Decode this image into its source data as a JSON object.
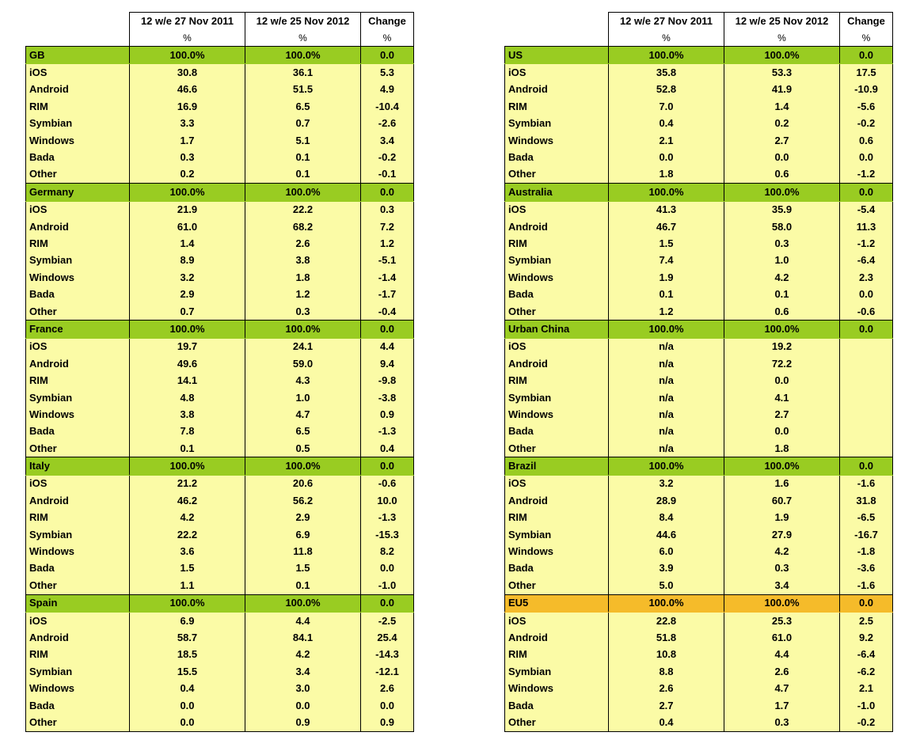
{
  "chart_data": {
    "type": "table",
    "columns": [
      "",
      "12 w/e 27 Nov 2011",
      "12 w/e 25 Nov 2012",
      "Change"
    ],
    "units": [
      "",
      "%",
      "%",
      "%"
    ],
    "left_panel": [
      {
        "region": "GB",
        "total": [
          "100.0%",
          "100.0%",
          "0.0"
        ],
        "rows": [
          [
            "iOS",
            "30.8",
            "36.1",
            "5.3"
          ],
          [
            "Android",
            "46.6",
            "51.5",
            "4.9"
          ],
          [
            "RIM",
            "16.9",
            "6.5",
            "-10.4"
          ],
          [
            "Symbian",
            "3.3",
            "0.7",
            "-2.6"
          ],
          [
            "Windows",
            "1.7",
            "5.1",
            "3.4"
          ],
          [
            "Bada",
            "0.3",
            "0.1",
            "-0.2"
          ],
          [
            "Other",
            "0.2",
            "0.1",
            "-0.1"
          ]
        ]
      },
      {
        "region": "Germany",
        "total": [
          "100.0%",
          "100.0%",
          "0.0"
        ],
        "rows": [
          [
            "iOS",
            "21.9",
            "22.2",
            "0.3"
          ],
          [
            "Android",
            "61.0",
            "68.2",
            "7.2"
          ],
          [
            "RIM",
            "1.4",
            "2.6",
            "1.2"
          ],
          [
            "Symbian",
            "8.9",
            "3.8",
            "-5.1"
          ],
          [
            "Windows",
            "3.2",
            "1.8",
            "-1.4"
          ],
          [
            "Bada",
            "2.9",
            "1.2",
            "-1.7"
          ],
          [
            "Other",
            "0.7",
            "0.3",
            "-0.4"
          ]
        ]
      },
      {
        "region": "France",
        "total": [
          "100.0%",
          "100.0%",
          "0.0"
        ],
        "rows": [
          [
            "iOS",
            "19.7",
            "24.1",
            "4.4"
          ],
          [
            "Android",
            "49.6",
            "59.0",
            "9.4"
          ],
          [
            "RIM",
            "14.1",
            "4.3",
            "-9.8"
          ],
          [
            "Symbian",
            "4.8",
            "1.0",
            "-3.8"
          ],
          [
            "Windows",
            "3.8",
            "4.7",
            "0.9"
          ],
          [
            "Bada",
            "7.8",
            "6.5",
            "-1.3"
          ],
          [
            "Other",
            "0.1",
            "0.5",
            "0.4"
          ]
        ]
      },
      {
        "region": "Italy",
        "total": [
          "100.0%",
          "100.0%",
          "0.0"
        ],
        "rows": [
          [
            "iOS",
            "21.2",
            "20.6",
            "-0.6"
          ],
          [
            "Android",
            "46.2",
            "56.2",
            "10.0"
          ],
          [
            "RIM",
            "4.2",
            "2.9",
            "-1.3"
          ],
          [
            "Symbian",
            "22.2",
            "6.9",
            "-15.3"
          ],
          [
            "Windows",
            "3.6",
            "11.8",
            "8.2"
          ],
          [
            "Bada",
            "1.5",
            "1.5",
            "0.0"
          ],
          [
            "Other",
            "1.1",
            "0.1",
            "-1.0"
          ]
        ]
      },
      {
        "region": "Spain",
        "total": [
          "100.0%",
          "100.0%",
          "0.0"
        ],
        "rows": [
          [
            "iOS",
            "6.9",
            "4.4",
            "-2.5"
          ],
          [
            "Android",
            "58.7",
            "84.1",
            "25.4"
          ],
          [
            "RIM",
            "18.5",
            "4.2",
            "-14.3"
          ],
          [
            "Symbian",
            "15.5",
            "3.4",
            "-12.1"
          ],
          [
            "Windows",
            "0.4",
            "3.0",
            "2.6"
          ],
          [
            "Bada",
            "0.0",
            "0.0",
            "0.0"
          ],
          [
            "Other",
            "0.0",
            "0.9",
            "0.9"
          ]
        ]
      }
    ],
    "right_panel": [
      {
        "region": "US",
        "total": [
          "100.0%",
          "100.0%",
          "0.0"
        ],
        "rows": [
          [
            "iOS",
            "35.8",
            "53.3",
            "17.5"
          ],
          [
            "Android",
            "52.8",
            "41.9",
            "-10.9"
          ],
          [
            "RIM",
            "7.0",
            "1.4",
            "-5.6"
          ],
          [
            "Symbian",
            "0.4",
            "0.2",
            "-0.2"
          ],
          [
            "Windows",
            "2.1",
            "2.7",
            "0.6"
          ],
          [
            "Bada",
            "0.0",
            "0.0",
            "0.0"
          ],
          [
            "Other",
            "1.8",
            "0.6",
            "-1.2"
          ]
        ]
      },
      {
        "region": "Australia",
        "total": [
          "100.0%",
          "100.0%",
          "0.0"
        ],
        "rows": [
          [
            "iOS",
            "41.3",
            "35.9",
            "-5.4"
          ],
          [
            "Android",
            "46.7",
            "58.0",
            "11.3"
          ],
          [
            "RIM",
            "1.5",
            "0.3",
            "-1.2"
          ],
          [
            "Symbian",
            "7.4",
            "1.0",
            "-6.4"
          ],
          [
            "Windows",
            "1.9",
            "4.2",
            "2.3"
          ],
          [
            "Bada",
            "0.1",
            "0.1",
            "0.0"
          ],
          [
            "Other",
            "1.2",
            "0.6",
            "-0.6"
          ]
        ]
      },
      {
        "region": "Urban China",
        "total": [
          "100.0%",
          "100.0%",
          "0.0"
        ],
        "rows": [
          [
            "iOS",
            "n/a",
            "19.2",
            ""
          ],
          [
            "Android",
            "n/a",
            "72.2",
            ""
          ],
          [
            "RIM",
            "n/a",
            "0.0",
            ""
          ],
          [
            "Symbian",
            "n/a",
            "4.1",
            ""
          ],
          [
            "Windows",
            "n/a",
            "2.7",
            ""
          ],
          [
            "Bada",
            "n/a",
            "0.0",
            ""
          ],
          [
            "Other",
            "n/a",
            "1.8",
            ""
          ]
        ]
      },
      {
        "region": "Brazil",
        "total": [
          "100.0%",
          "100.0%",
          "0.0"
        ],
        "rows": [
          [
            "iOS",
            "3.2",
            "1.6",
            "-1.6"
          ],
          [
            "Android",
            "28.9",
            "60.7",
            "31.8"
          ],
          [
            "RIM",
            "8.4",
            "1.9",
            "-6.5"
          ],
          [
            "Symbian",
            "44.6",
            "27.9",
            "-16.7"
          ],
          [
            "Windows",
            "6.0",
            "4.2",
            "-1.8"
          ],
          [
            "Bada",
            "3.9",
            "0.3",
            "-3.6"
          ],
          [
            "Other",
            "5.0",
            "3.4",
            "-1.6"
          ]
        ]
      },
      {
        "region": "EU5",
        "highlight": "#f5bb2a",
        "total": [
          "100.0%",
          "100.0%",
          "0.0"
        ],
        "rows": [
          [
            "iOS",
            "22.8",
            "25.3",
            "2.5"
          ],
          [
            "Android",
            "51.8",
            "61.0",
            "9.2"
          ],
          [
            "RIM",
            "10.8",
            "4.4",
            "-6.4"
          ],
          [
            "Symbian",
            "8.8",
            "2.6",
            "-6.2"
          ],
          [
            "Windows",
            "2.6",
            "4.7",
            "2.1"
          ],
          [
            "Bada",
            "2.7",
            "1.7",
            "-1.0"
          ],
          [
            "Other",
            "0.4",
            "0.3",
            "-0.2"
          ]
        ]
      }
    ],
    "colors": {
      "region_header": "#99cc22",
      "eu5_header": "#f5bb2a",
      "row_fill": "#fbfba6"
    }
  }
}
